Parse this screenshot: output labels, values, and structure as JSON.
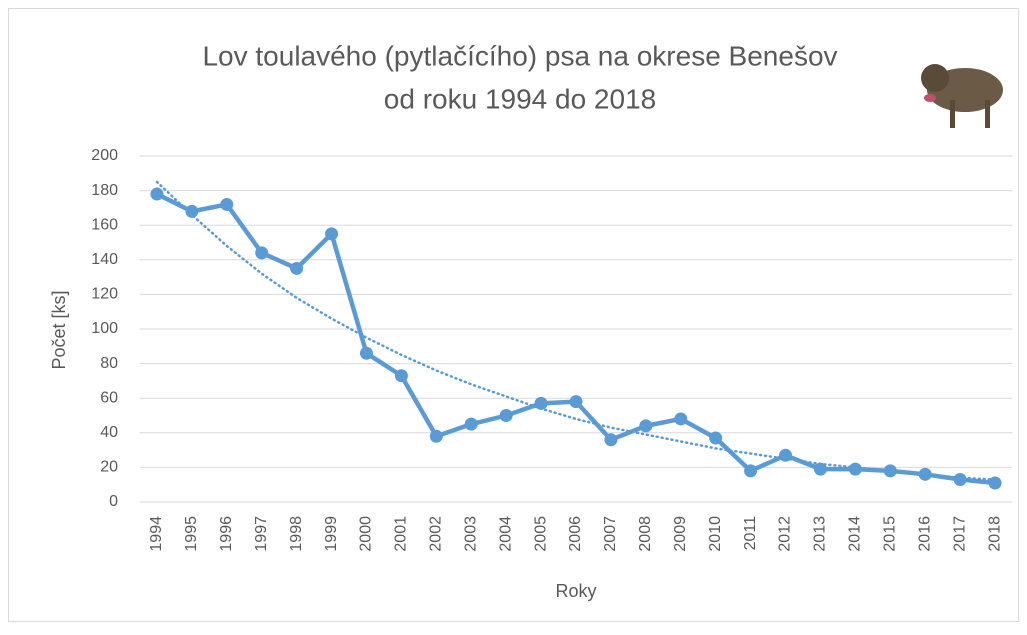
{
  "chart_data": {
    "type": "line",
    "title": [
      "Lov toulavého (pytlačícího) psa na okrese Benešov",
      "od roku 1994 do 2018"
    ],
    "x_label": "Roky",
    "y_label": "Počet [ks]",
    "categories": [
      "1994",
      "1995",
      "1996",
      "1997",
      "1998",
      "1999",
      "2000",
      "2001",
      "2002",
      "2003",
      "2004",
      "2005",
      "2006",
      "2007",
      "2008",
      "2009",
      "2010",
      "2011",
      "2012",
      "2013",
      "2014",
      "2015",
      "2016",
      "2017",
      "2018"
    ],
    "series": [
      {
        "color": "#5b9bd5",
        "values": [
          178,
          168,
          172,
          144,
          135,
          155,
          86,
          73,
          38,
          45,
          50,
          57,
          58,
          36,
          44,
          48,
          37,
          18,
          27,
          19,
          19,
          18,
          16,
          13,
          11
        ]
      }
    ],
    "trendline": {
      "color": "#5b9bd5",
      "values": [
        185,
        166,
        148,
        132,
        118,
        106,
        95,
        85,
        76,
        68,
        61,
        54,
        48,
        43,
        39,
        35,
        31,
        28,
        25,
        22,
        20,
        18,
        16,
        14,
        13
      ]
    },
    "ylim": [
      0,
      200
    ],
    "yticks": [
      0,
      20,
      40,
      60,
      80,
      100,
      120,
      140,
      160,
      180,
      200
    ],
    "grid": true
  }
}
